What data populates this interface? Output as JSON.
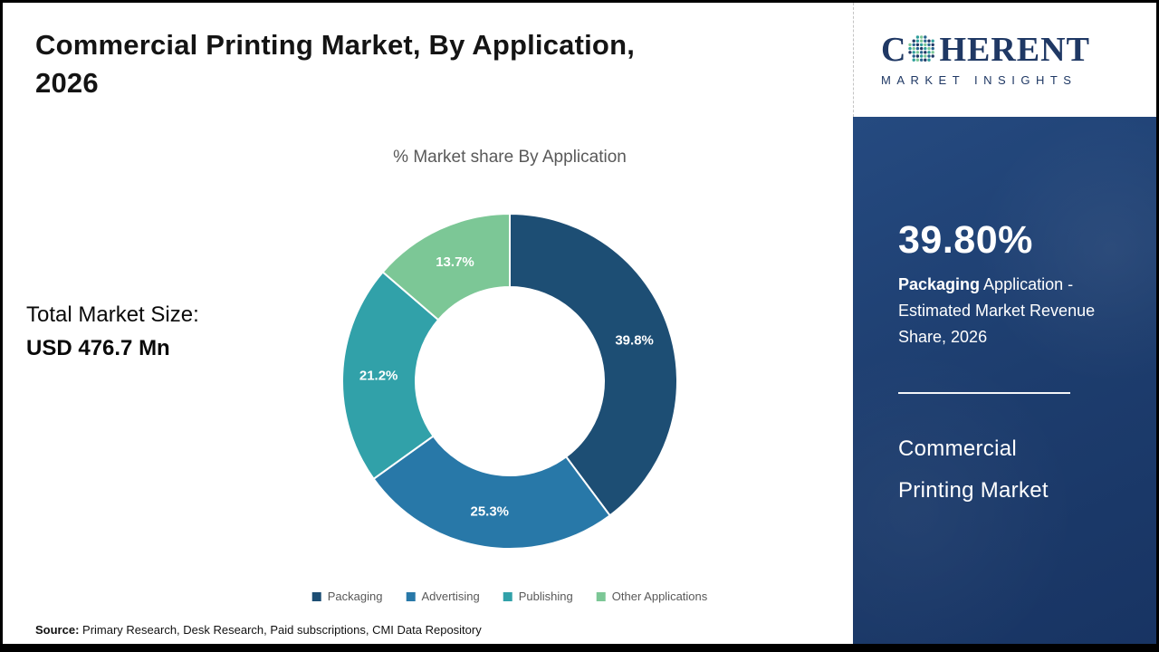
{
  "header": {
    "title_line1": "Commercial Printing Market, By Application,",
    "title_line2": "2026"
  },
  "chart_data": {
    "type": "pie",
    "subtype": "donut",
    "title": "% Market share By Application",
    "categories": [
      "Packaging",
      "Advertising",
      "Publishing",
      "Other Applications"
    ],
    "values": [
      39.8,
      25.3,
      21.2,
      13.7
    ],
    "slice_labels": [
      "39.8%",
      "25.3%",
      "21.2%",
      "13.7%"
    ],
    "colors": [
      "#1d4e74",
      "#2878a8",
      "#31a1a9",
      "#7cc796"
    ],
    "legend_position": "bottom",
    "start_angle_deg": 0,
    "direction": "clockwise"
  },
  "left": {
    "total_market_label": "Total Market Size:",
    "total_market_value": "USD 476.7 Mn",
    "source_label": "Source:",
    "source_text": " Primary Research, Desk Research, Paid subscriptions, CMI Data Repository"
  },
  "sidebar": {
    "logo": {
      "brand_prefix": "C",
      "brand_suffix": "HERENT",
      "tagline": "MARKET INSIGHTS",
      "brand_color": "#1f3864"
    },
    "highlight_value": "39.80%",
    "highlight_bold": "Packaging",
    "highlight_rest": " Application - Estimated Market Revenue Share, 2026",
    "market_name_line1": "Commercial",
    "market_name_line2": "Printing Market",
    "panel_color": "#1d3d6e"
  }
}
